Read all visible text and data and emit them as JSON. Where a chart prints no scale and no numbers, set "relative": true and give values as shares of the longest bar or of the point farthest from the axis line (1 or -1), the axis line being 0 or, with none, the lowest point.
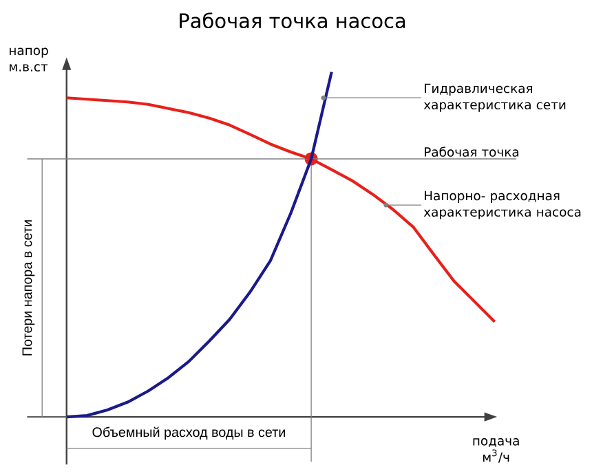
{
  "chart_data": {
    "type": "line",
    "title": "Рабочая точка насоса",
    "xlabel": "подача м$^{3}$/ч",
    "ylabel": "напор м.в.ст",
    "relative": true,
    "categories": [
      null,
      null,
      null,
      null,
      null,
      null,
      null,
      null,
      null,
      null,
      null,
      null,
      null,
      null,
      null,
      null,
      null,
      null,
      null,
      null,
      null,
      null
    ],
    "series": [
      {
        "color": "#e8201a",
        "values": [
          0.925,
          0.921,
          0.917,
          0.913,
          0.906,
          0.894,
          0.882,
          0.866,
          0.846,
          0.819,
          0.791,
          0.768,
          0.748,
          0.717,
          0.685,
          0.646,
          0.602,
          0.551,
          0.472,
          0.394,
          0.335,
          0.276
        ]
      },
      {
        "color": "#1a1a8c",
        "values": [
          0,
          0.004,
          0.02,
          0.043,
          0.075,
          0.114,
          0.161,
          0.22,
          0.283,
          0.362,
          0.453,
          0.591,
          0.748,
          1,
          null,
          null,
          null,
          null,
          null,
          null,
          null,
          null
        ]
      }
    ],
    "ref_lines": [
      {
        "axis": "y",
        "value": 0.748,
        "label": "Рабочая точка",
        "color": "#808080"
      }
    ],
    "annotations": [
      "Гидравлическая характеристика сети",
      "Напорно- расходная характеристика насоса",
      "Потери напора в сети",
      "Объемный расход воды в сети"
    ]
  }
}
